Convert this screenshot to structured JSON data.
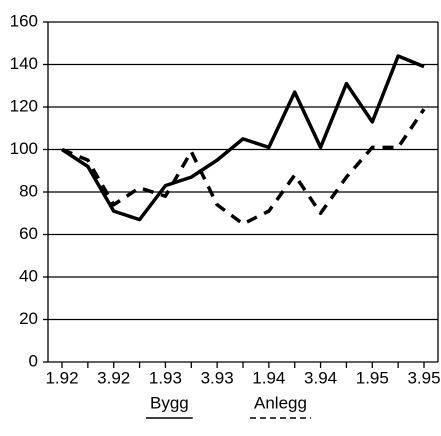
{
  "chart_data": {
    "type": "line",
    "categories": [
      "1.92",
      null,
      "3.92",
      null,
      "1.93",
      null,
      "3.93",
      null,
      "1.94",
      null,
      "3.94",
      null,
      "1.95",
      null,
      "3.95"
    ],
    "series": [
      {
        "name": "Bygg",
        "color": "#000000",
        "dash": false,
        "values": [
          100,
          92,
          71,
          67,
          83,
          87,
          95,
          105,
          101,
          127,
          101,
          131,
          113,
          144,
          139
        ]
      },
      {
        "name": "Anlegg",
        "color": "#000000",
        "dash": true,
        "values": [
          100,
          95,
          74,
          82,
          78,
          99,
          74,
          65,
          71,
          88,
          70,
          87,
          101,
          101,
          119
        ]
      }
    ],
    "ylim": [
      0,
      160
    ],
    "yticks": [
      0,
      20,
      40,
      60,
      80,
      100,
      120,
      140,
      160
    ],
    "grid": true
  }
}
